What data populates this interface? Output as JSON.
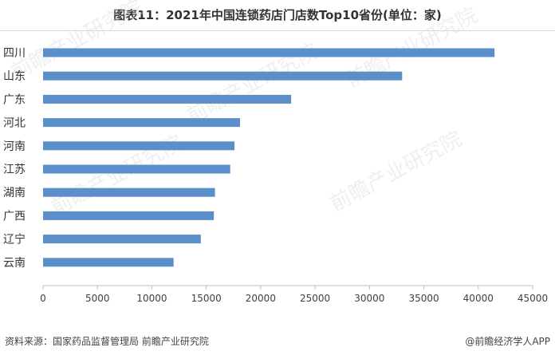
{
  "header": {
    "title": "图表11：2021年中国连锁药店门店数Top10省份(单位：家)"
  },
  "footer": {
    "source": "资料来源：国家药品监督管理局 前瞻产业研究院",
    "credit": "@前瞻经济学人APP"
  },
  "watermark": {
    "text": "前瞻产业研究院"
  },
  "chart_data": {
    "type": "bar",
    "orientation": "horizontal",
    "title": "图表11：2021年中国连锁药店门店数Top10省份(单位：家)",
    "categories": [
      "四川",
      "山东",
      "广东",
      "河北",
      "河南",
      "江苏",
      "湖南",
      "广西",
      "辽宁",
      "云南"
    ],
    "values": [
      41500,
      33000,
      22800,
      18100,
      17600,
      17200,
      15800,
      15700,
      14500,
      12000
    ],
    "xlim": [
      0,
      45000
    ],
    "xticks": [
      0,
      5000,
      10000,
      15000,
      20000,
      25000,
      30000,
      35000,
      40000,
      45000
    ],
    "grid": false,
    "legend": "none",
    "colors": {
      "bar": "#5b8fc9",
      "axis": "#bfbfbf"
    }
  }
}
